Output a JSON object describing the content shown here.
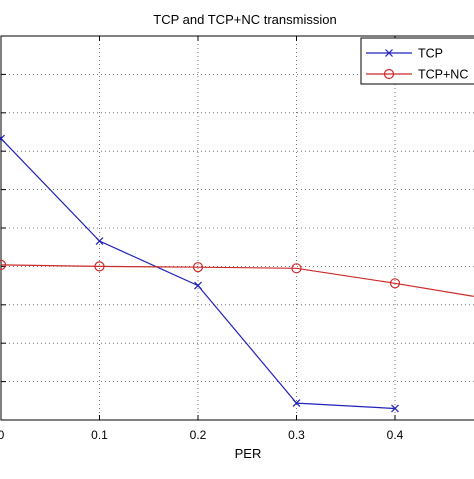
{
  "chart_data": {
    "type": "line",
    "title": "TCP and TCP+NC transmission",
    "xlabel": "PER",
    "ylabel": "",
    "xlim": [
      0,
      0.48
    ],
    "ylim": [
      0,
      10
    ],
    "x_ticks": [
      0,
      0.1,
      0.2,
      0.3,
      0.4
    ],
    "x_tick_labels": [
      "0",
      "0.1",
      "0.2",
      "0.3",
      "0.4"
    ],
    "y_gridlines": [
      1,
      2,
      3,
      4,
      5,
      6,
      7,
      8,
      9
    ],
    "grid": "dotted",
    "legend_position": "top-right",
    "series": [
      {
        "name": "TCP",
        "color": "#2222bb",
        "marker": "x",
        "x": [
          0,
          0.1,
          0.2,
          0.3,
          0.4
        ],
        "y": [
          7.33,
          4.66,
          3.5,
          0.44,
          0.3
        ]
      },
      {
        "name": "TCP+NC",
        "color": "#cc2a2a",
        "marker": "circle",
        "x": [
          0,
          0.1,
          0.2,
          0.3,
          0.4
        ],
        "y": [
          4.04,
          4.0,
          3.98,
          3.95,
          3.56
        ],
        "line_continues_to": [
          0.48,
          3.22
        ]
      }
    ]
  }
}
